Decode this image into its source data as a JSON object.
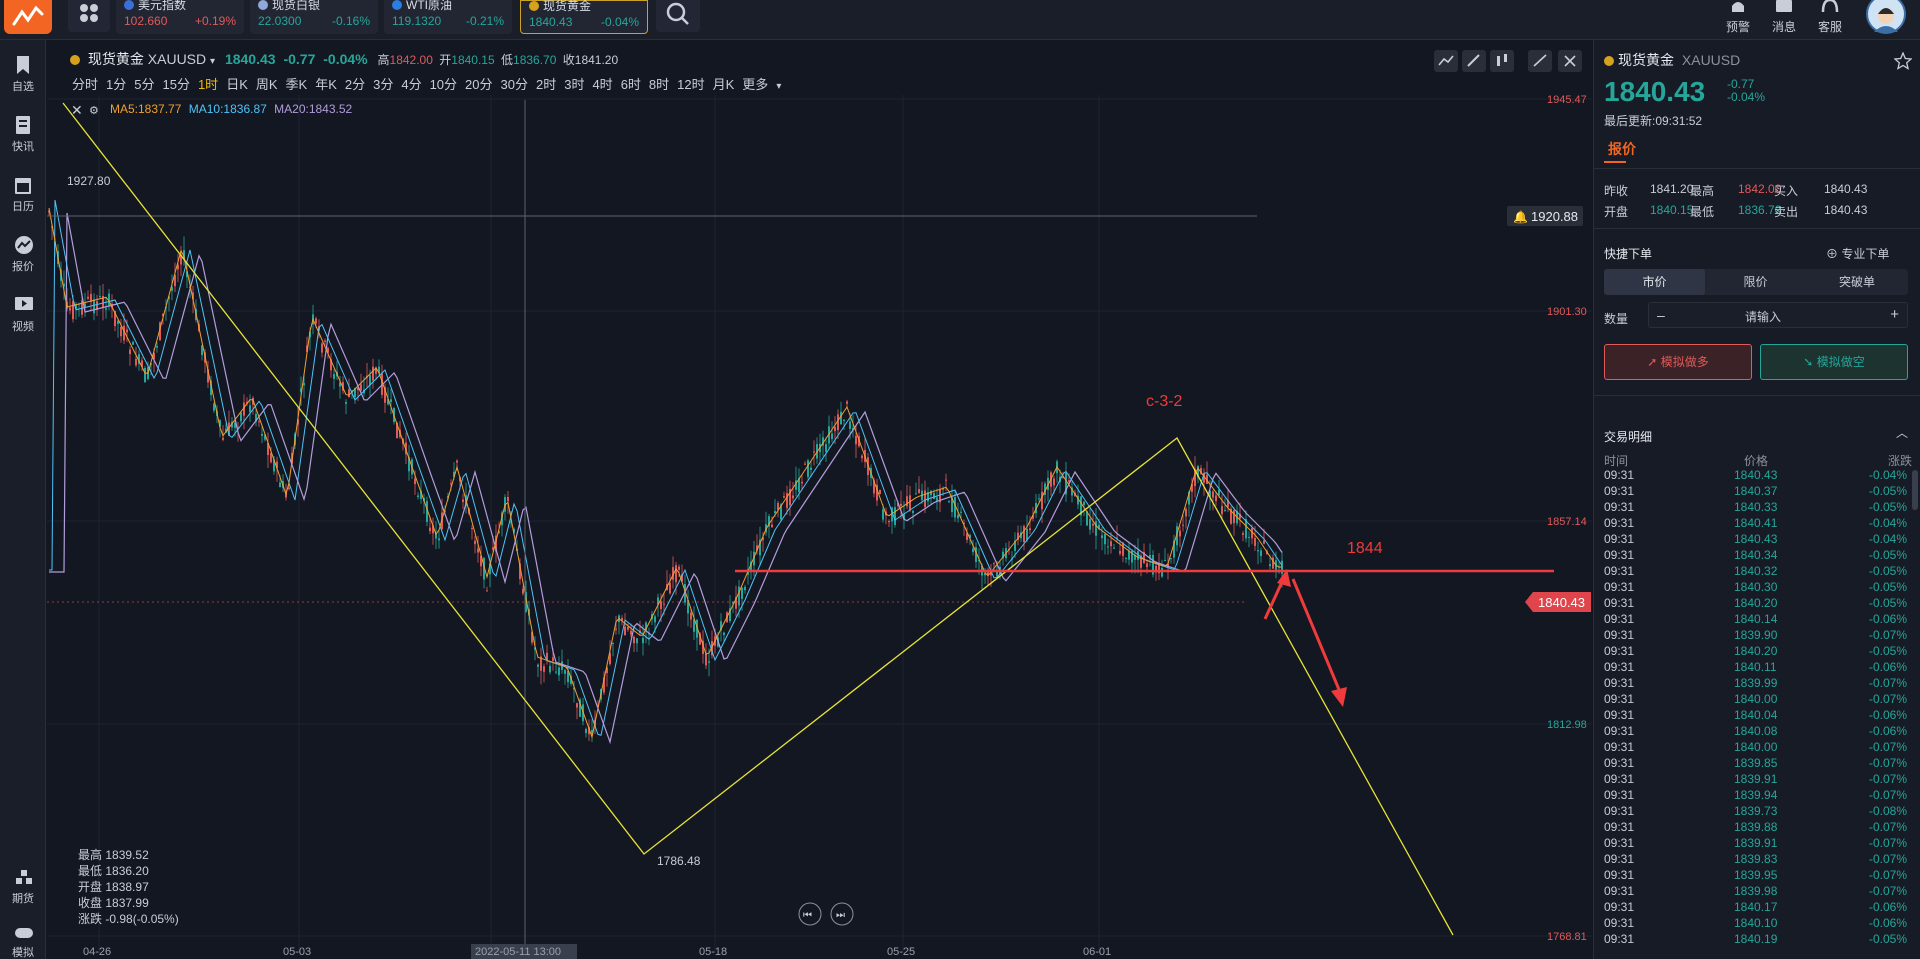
{
  "tickers": [
    {
      "name": "美元指数",
      "price": "102.660",
      "change": "+0.19%",
      "price_color": "#e05a5a",
      "change_color": "#e05a5a",
      "dot": "#3b6fd8"
    },
    {
      "name": "现货白银",
      "price": "22.0300",
      "change": "-0.16%",
      "price_color": "#26a69a",
      "change_color": "#26a69a",
      "dot": "#8fa8d8"
    },
    {
      "name": "WTI原油",
      "price": "119.1320",
      "change": "-0.21%",
      "price_color": "#26a69a",
      "change_color": "#26a69a",
      "dot": "#2a7de1"
    },
    {
      "name": "现货黄金",
      "price": "1840.43",
      "change": "-0.04%",
      "price_color": "#26a69a",
      "change_color": "#26a69a",
      "dot": "#d6a21e"
    }
  ],
  "top_icons": [
    {
      "label": "预警",
      "icon": "bell-icon"
    },
    {
      "label": "消息",
      "icon": "message-icon"
    },
    {
      "label": "客服",
      "icon": "headset-icon"
    }
  ],
  "sidebar": {
    "items": [
      {
        "label": "自选",
        "icon": "bookmark-icon"
      },
      {
        "label": "快讯",
        "icon": "news-icon"
      },
      {
        "label": "日历",
        "icon": "calendar-icon"
      },
      {
        "label": "报价",
        "icon": "quote-icon"
      },
      {
        "label": "视频",
        "icon": "video-icon"
      }
    ],
    "bottom": [
      {
        "label": "期货",
        "icon": "futures-icon"
      },
      {
        "label": "模拟",
        "icon": "gamepad-icon"
      }
    ]
  },
  "chart": {
    "symbol_name": "现货黄金",
    "symbol_code": "XAUUSD",
    "price": "1840.43",
    "change": "-0.77",
    "change_pct": "-0.04%",
    "high_label": "高",
    "high": "1842.00",
    "open_label": "开",
    "open": "1840.15",
    "low_label": "低",
    "low": "1836.70",
    "prev_label": "收",
    "prev": "1841.20",
    "periods": [
      "分时",
      "1分",
      "5分",
      "15分",
      "1时",
      "日K",
      "周K",
      "季K",
      "年K",
      "2分",
      "3分",
      "4分",
      "10分",
      "20分",
      "30分",
      "2时",
      "3时",
      "4时",
      "6时",
      "8时",
      "12时",
      "月K",
      "更多"
    ],
    "active_period": "1时",
    "ma5": "MA5:1837.77",
    "ma10": "MA10:1836.87",
    "ma20": "MA20:1843.52",
    "ma_colors": {
      "ma5": "#f0a030",
      "ma10": "#4fc3f7",
      "ma20": "#b39ddb"
    },
    "y_ticks": [
      "1945.47",
      "1901.30",
      "1857.14",
      "1812.98",
      "1768.81"
    ],
    "x_ticks": [
      "04-26",
      "05-03",
      "2022-05-11 13:00",
      "05-18",
      "05-25",
      "06-01"
    ],
    "alert_price": "1920.88",
    "current_price_tag": "1840.43",
    "peak_label": "1927.80",
    "trough_label": "1786.48",
    "annotation_wave": "c-3-2",
    "annotation_level": "1844",
    "ohlc_box": [
      {
        "label": "最高",
        "value": "1839.52"
      },
      {
        "label": "最低",
        "value": "1836.20"
      },
      {
        "label": "开盘",
        "value": "1838.97"
      },
      {
        "label": "收盘",
        "value": "1837.99"
      },
      {
        "label": "涨跌",
        "value": "-0.98(-0.05%)"
      }
    ]
  },
  "panel": {
    "symbol_name": "现货黄金",
    "symbol_code": "XAUUSD",
    "price": "1840.43",
    "change": "-0.77",
    "change_pct": "-0.04%",
    "updated": "最后更新:09:31:52",
    "tab": "报价",
    "quote": {
      "prev_close_label": "昨收",
      "prev_close": "1841.20",
      "high_label": "最高",
      "high": "1842.00",
      "buy_label": "买入",
      "buy": "1840.43",
      "open_label": "开盘",
      "open": "1840.15",
      "low_label": "最低",
      "low": "1836.70",
      "sell_label": "卖出",
      "sell": "1840.43"
    },
    "quick_order": "快捷下单",
    "pro_order": "专业下单",
    "order_tabs": [
      "市价",
      "限价",
      "突破单"
    ],
    "qty_label": "数量",
    "qty_placeholder": "请输入",
    "qty_minus": "–",
    "qty_plus": "+",
    "buy_btn": "模拟做多",
    "sell_btn": "模拟做空",
    "trades_title": "交易明细",
    "trades_cols": [
      "时间",
      "价格",
      "涨跌"
    ],
    "trades": [
      [
        "09:31",
        "1840.43",
        "-0.04%"
      ],
      [
        "09:31",
        "1840.37",
        "-0.05%"
      ],
      [
        "09:31",
        "1840.33",
        "-0.05%"
      ],
      [
        "09:31",
        "1840.41",
        "-0.04%"
      ],
      [
        "09:31",
        "1840.43",
        "-0.04%"
      ],
      [
        "09:31",
        "1840.34",
        "-0.05%"
      ],
      [
        "09:31",
        "1840.32",
        "-0.05%"
      ],
      [
        "09:31",
        "1840.30",
        "-0.05%"
      ],
      [
        "09:31",
        "1840.20",
        "-0.05%"
      ],
      [
        "09:31",
        "1840.14",
        "-0.06%"
      ],
      [
        "09:31",
        "1839.90",
        "-0.07%"
      ],
      [
        "09:31",
        "1840.20",
        "-0.05%"
      ],
      [
        "09:31",
        "1840.11",
        "-0.06%"
      ],
      [
        "09:31",
        "1839.99",
        "-0.07%"
      ],
      [
        "09:31",
        "1840.00",
        "-0.07%"
      ],
      [
        "09:31",
        "1840.04",
        "-0.06%"
      ],
      [
        "09:31",
        "1840.08",
        "-0.06%"
      ],
      [
        "09:31",
        "1840.00",
        "-0.07%"
      ],
      [
        "09:31",
        "1839.85",
        "-0.07%"
      ],
      [
        "09:31",
        "1839.91",
        "-0.07%"
      ],
      [
        "09:31",
        "1839.94",
        "-0.07%"
      ],
      [
        "09:31",
        "1839.73",
        "-0.08%"
      ],
      [
        "09:31",
        "1839.88",
        "-0.07%"
      ],
      [
        "09:31",
        "1839.91",
        "-0.07%"
      ],
      [
        "09:31",
        "1839.83",
        "-0.07%"
      ],
      [
        "09:31",
        "1839.95",
        "-0.07%"
      ],
      [
        "09:31",
        "1839.98",
        "-0.07%"
      ],
      [
        "09:31",
        "1840.17",
        "-0.06%"
      ],
      [
        "09:31",
        "1840.10",
        "-0.06%"
      ],
      [
        "09:31",
        "1840.19",
        "-0.05%"
      ]
    ]
  }
}
